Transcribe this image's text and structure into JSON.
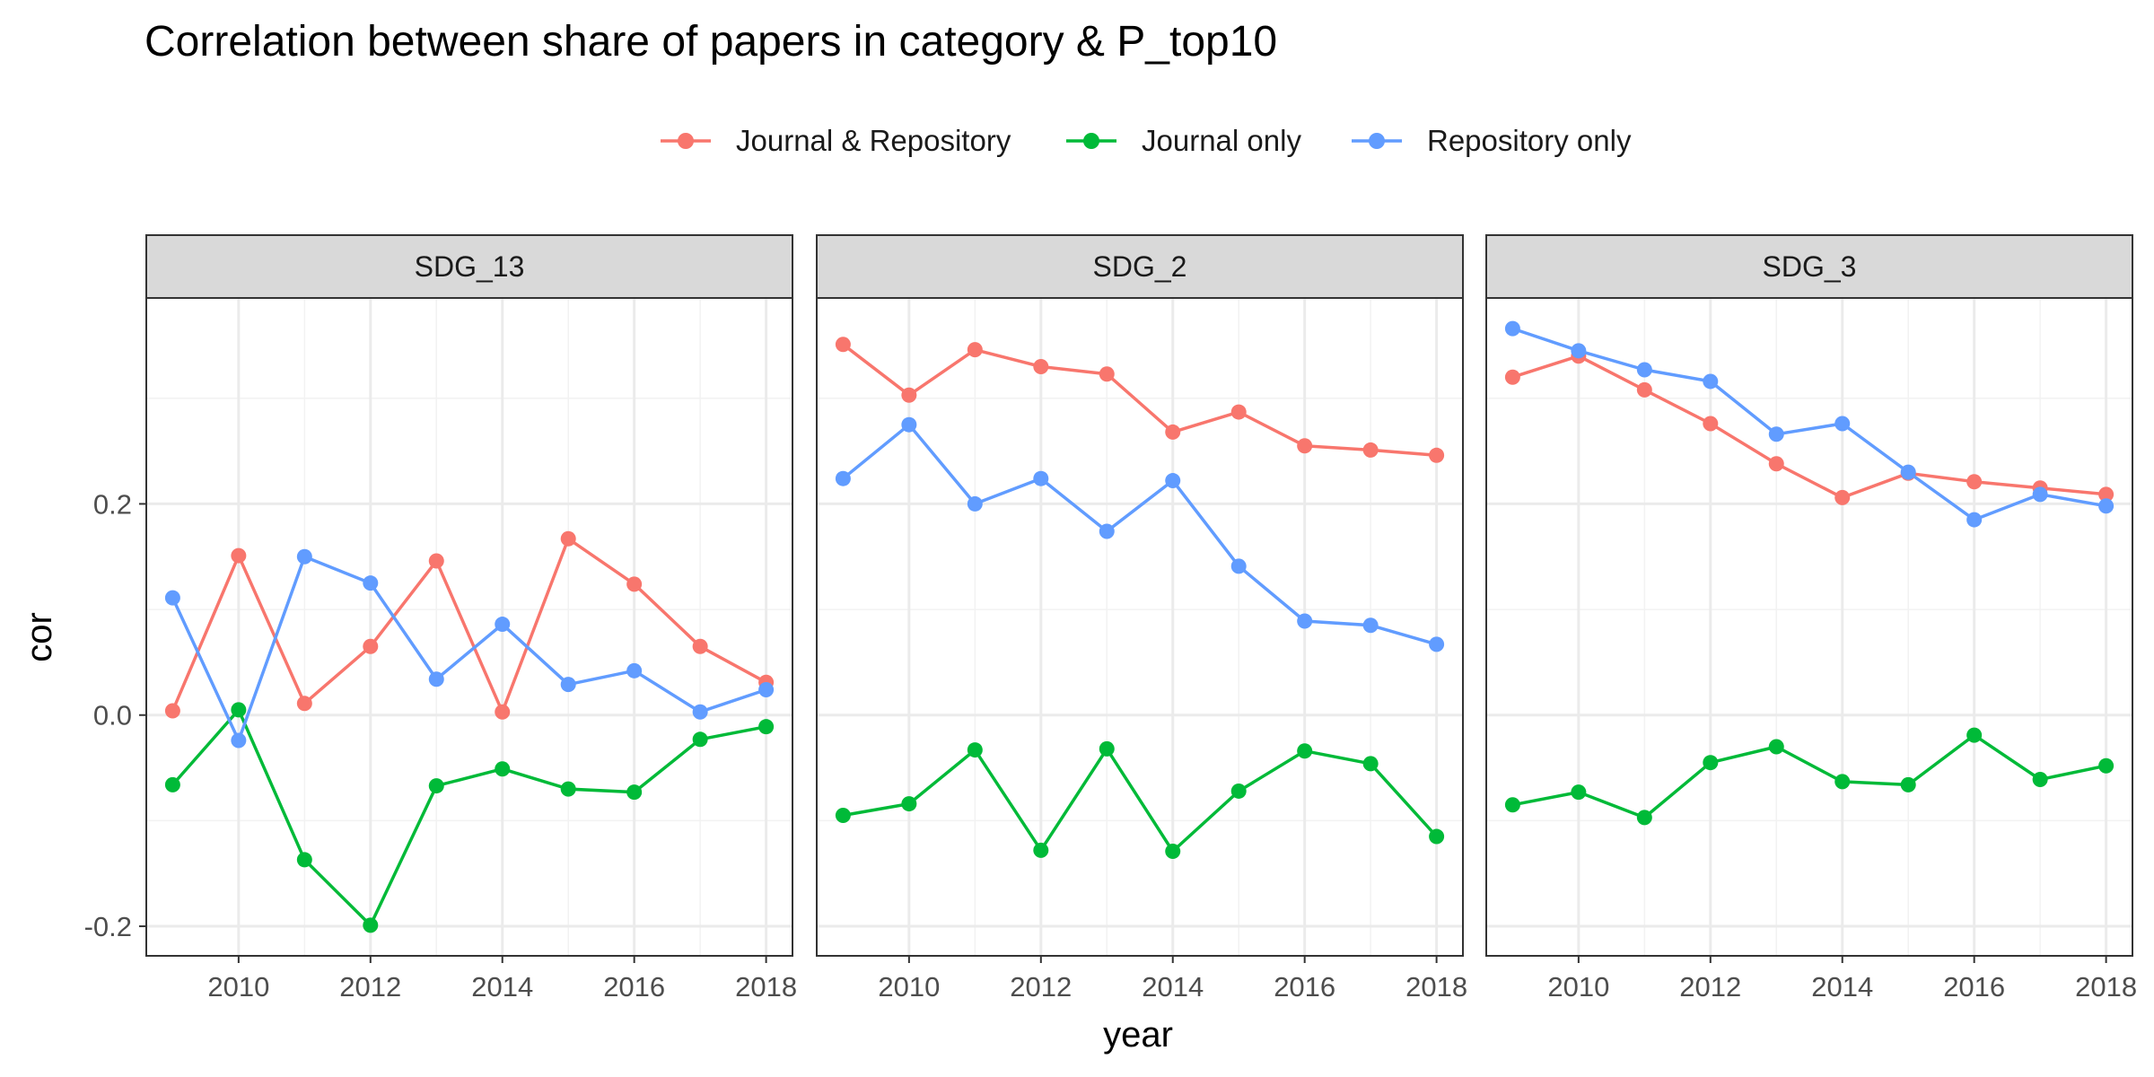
{
  "chart_data": {
    "type": "line",
    "title": "Correlation between share of papers in category & P_top10",
    "xlabel": "year",
    "ylabel": "cor",
    "x": [
      2009,
      2010,
      2011,
      2012,
      2013,
      2014,
      2015,
      2016,
      2017,
      2018
    ],
    "x_ticks": [
      2010,
      2012,
      2014,
      2016,
      2018
    ],
    "y_ticks": [
      -0.2,
      0.0,
      0.2
    ],
    "y_tick_labels": [
      "-0.2",
      "0.0",
      "0.2"
    ],
    "xlim": [
      2008.6,
      2018.4
    ],
    "ylim": [
      -0.228,
      0.395
    ],
    "grid": true,
    "legend_position": "top",
    "series_colors": {
      "Journal & Repository": "#F8766D",
      "Journal only": "#00BA38",
      "Repository only": "#619CFF"
    },
    "legend": [
      "Journal & Repository",
      "Journal only",
      "Repository only"
    ],
    "panels": [
      {
        "label": "SDG_13",
        "series": [
          {
            "name": "Journal & Repository",
            "values": [
              0.004,
              0.151,
              0.011,
              0.065,
              0.146,
              0.003,
              0.167,
              0.124,
              0.065,
              0.031
            ]
          },
          {
            "name": "Journal only",
            "values": [
              -0.066,
              0.005,
              -0.137,
              -0.199,
              -0.067,
              -0.051,
              -0.07,
              -0.073,
              -0.023,
              -0.011
            ]
          },
          {
            "name": "Repository only",
            "values": [
              0.111,
              -0.024,
              0.15,
              0.125,
              0.034,
              0.086,
              0.029,
              0.042,
              0.003,
              0.024
            ]
          }
        ]
      },
      {
        "label": "SDG_2",
        "series": [
          {
            "name": "Journal & Repository",
            "values": [
              0.351,
              0.303,
              0.346,
              0.33,
              0.323,
              0.268,
              0.287,
              0.255,
              0.251,
              0.246
            ]
          },
          {
            "name": "Journal only",
            "values": [
              -0.095,
              -0.084,
              -0.033,
              -0.128,
              -0.032,
              -0.129,
              -0.072,
              -0.034,
              -0.046,
              -0.115
            ]
          },
          {
            "name": "Repository only",
            "values": [
              0.224,
              0.275,
              0.2,
              0.224,
              0.174,
              0.222,
              0.141,
              0.089,
              0.085,
              0.067
            ]
          }
        ]
      },
      {
        "label": "SDG_3",
        "series": [
          {
            "name": "Journal & Repository",
            "values": [
              0.32,
              0.34,
              0.308,
              0.276,
              0.238,
              0.206,
              0.229,
              0.221,
              0.215,
              0.209
            ]
          },
          {
            "name": "Journal only",
            "values": [
              -0.085,
              -0.073,
              -0.097,
              -0.045,
              -0.03,
              -0.063,
              -0.066,
              -0.019,
              -0.061,
              -0.048
            ]
          },
          {
            "name": "Repository only",
            "values": [
              0.366,
              0.345,
              0.327,
              0.316,
              0.266,
              0.276,
              0.23,
              0.185,
              0.209,
              0.198
            ]
          }
        ]
      }
    ]
  }
}
